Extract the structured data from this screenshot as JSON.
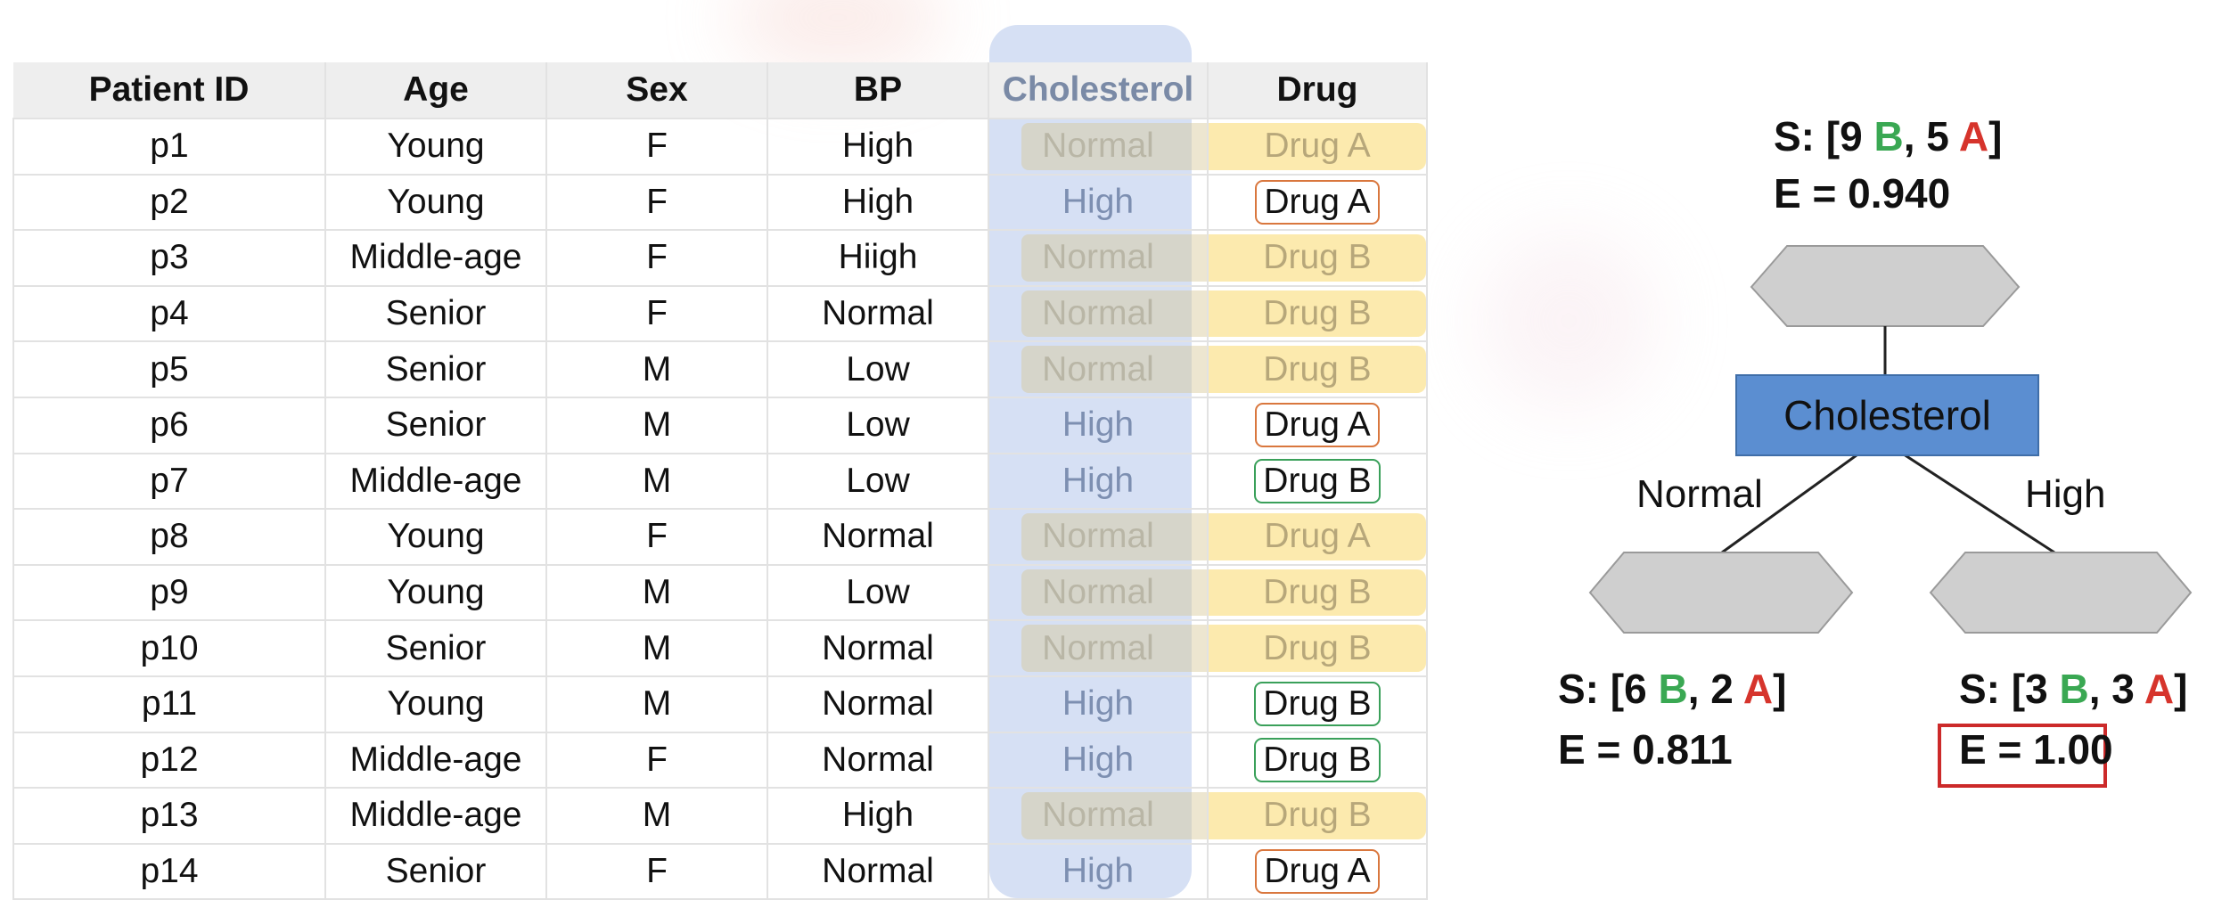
{
  "table": {
    "headers": [
      "Patient ID",
      "Age",
      "Sex",
      "BP",
      "Cholesterol",
      "Drug"
    ],
    "rows": [
      {
        "id": "p1",
        "age": "Young",
        "sex": "F",
        "bp": "High",
        "chol": "Normal",
        "drug": "Drug A",
        "drug_style": "highlight"
      },
      {
        "id": "p2",
        "age": "Young",
        "sex": "F",
        "bp": "High",
        "chol": "High",
        "drug": "Drug A",
        "drug_style": "box-a"
      },
      {
        "id": "p3",
        "age": "Middle-age",
        "sex": "F",
        "bp": "Hiigh",
        "chol": "Normal",
        "drug": "Drug B",
        "drug_style": "highlight"
      },
      {
        "id": "p4",
        "age": "Senior",
        "sex": "F",
        "bp": "Normal",
        "chol": "Normal",
        "drug": "Drug B",
        "drug_style": "highlight"
      },
      {
        "id": "p5",
        "age": "Senior",
        "sex": "M",
        "bp": "Low",
        "chol": "Normal",
        "drug": "Drug B",
        "drug_style": "highlight"
      },
      {
        "id": "p6",
        "age": "Senior",
        "sex": "M",
        "bp": "Low",
        "chol": "High",
        "drug": "Drug A",
        "drug_style": "box-a"
      },
      {
        "id": "p7",
        "age": "Middle-age",
        "sex": "M",
        "bp": "Low",
        "chol": "High",
        "drug": "Drug B",
        "drug_style": "box-b"
      },
      {
        "id": "p8",
        "age": "Young",
        "sex": "F",
        "bp": "Normal",
        "chol": "Normal",
        "drug": "Drug A",
        "drug_style": "highlight"
      },
      {
        "id": "p9",
        "age": "Young",
        "sex": "M",
        "bp": "Low",
        "chol": "Normal",
        "drug": "Drug B",
        "drug_style": "highlight"
      },
      {
        "id": "p10",
        "age": "Senior",
        "sex": "M",
        "bp": "Normal",
        "chol": "Normal",
        "drug": "Drug B",
        "drug_style": "highlight"
      },
      {
        "id": "p11",
        "age": "Young",
        "sex": "M",
        "bp": "Normal",
        "chol": "High",
        "drug": "Drug B",
        "drug_style": "box-b"
      },
      {
        "id": "p12",
        "age": "Middle-age",
        "sex": "F",
        "bp": "Normal",
        "chol": "High",
        "drug": "Drug B",
        "drug_style": "box-b"
      },
      {
        "id": "p13",
        "age": "Middle-age",
        "sex": "M",
        "bp": "High",
        "chol": "Normal",
        "drug": "Drug B",
        "drug_style": "highlight"
      },
      {
        "id": "p14",
        "age": "Senior",
        "sex": "F",
        "bp": "Normal",
        "chol": "High",
        "drug": "Drug A",
        "drug_style": "box-a"
      }
    ]
  },
  "tree": {
    "root": {
      "s_prefix": "S: [9 ",
      "b_letter": "B",
      "mid": ", 5 ",
      "a_letter": "A",
      "s_suffix": "]",
      "entropy": "E = 0.940"
    },
    "split_label": "Cholesterol",
    "branch_left": "Normal",
    "branch_right": "High",
    "left": {
      "s_prefix": "S: [6 ",
      "b_letter": "B",
      "mid": ", 2 ",
      "a_letter": "A",
      "s_suffix": "]",
      "entropy": "E = 0.811"
    },
    "right": {
      "s_prefix": "S: [3 ",
      "b_letter": "B",
      "mid": ", 3 ",
      "a_letter": "A",
      "s_suffix": "]",
      "entropy": "E = 1.00"
    }
  },
  "colors": {
    "b_label": "#3aa853",
    "a_label": "#d6342c",
    "node_fill": "#5b8ed1",
    "hexagon_fill": "#cfcfcf",
    "entropy_highlight": "#cc2a2a"
  }
}
